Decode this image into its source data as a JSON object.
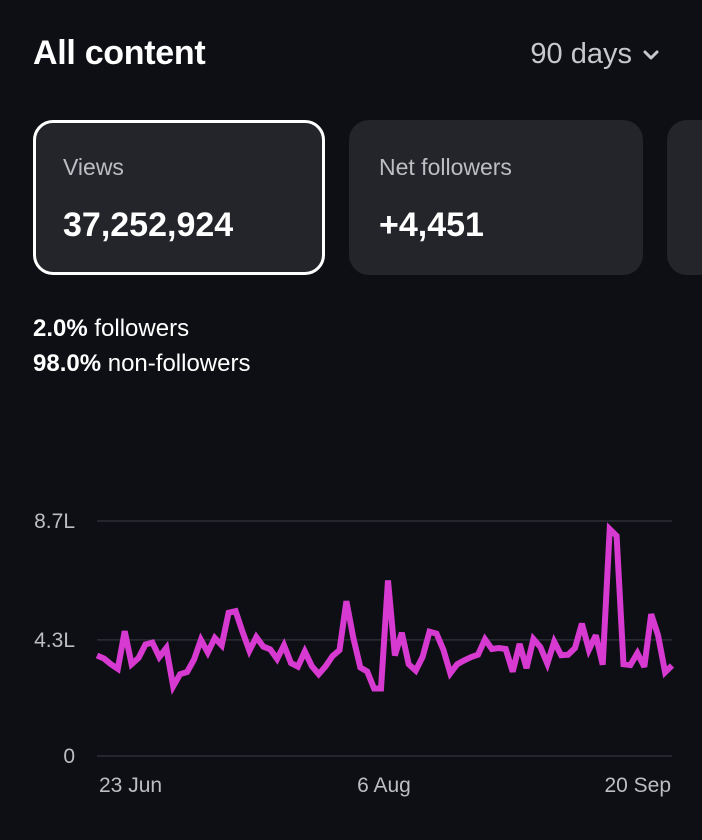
{
  "header": {
    "title": "All content",
    "range_label": "90 days"
  },
  "cards": [
    {
      "label": "Views",
      "value": "37,252,924",
      "selected": true
    },
    {
      "label": "Net followers",
      "value": "+4,451",
      "selected": false
    },
    {
      "label": "",
      "value": "",
      "selected": false
    }
  ],
  "audience": {
    "followers_pct": "2.0%",
    "followers_label": "followers",
    "nonfollowers_pct": "98.0%",
    "nonfollowers_label": "non-followers"
  },
  "colors": {
    "background": "#0d0f14",
    "card": "#23252b",
    "line": "#d63ad0"
  },
  "icons": {
    "range_toggle": "chevron-down-icon"
  },
  "chart_data": {
    "type": "line",
    "y_tick_labels": [
      "0",
      "4.3L",
      "8.7L"
    ],
    "y_ticks": [
      0,
      430000,
      870000
    ],
    "ylim": [
      0,
      870000
    ],
    "x_tick_labels": [
      "23 Jun",
      "6 Aug",
      "20 Sep"
    ],
    "x_tick_days": [
      0,
      44,
      89
    ],
    "x_start_label": "23 Jun",
    "x_end_label": "20 Sep",
    "series": [
      {
        "values": [
          372000,
          361000,
          340000,
          323000,
          462000,
          340000,
          363000,
          413000,
          420000,
          366000,
          400000,
          258000,
          303000,
          311000,
          357000,
          430000,
          383000,
          437000,
          410000,
          530000,
          536000,
          460000,
          390000,
          440000,
          405000,
          395000,
          359000,
          410000,
          344000,
          331000,
          387000,
          333000,
          303000,
          332000,
          370000,
          392000,
          573000,
          438000,
          328000,
          313000,
          250000,
          250000,
          650000,
          372000,
          456000,
          340000,
          316000,
          367000,
          460000,
          453000,
          393000,
          306000,
          340000,
          354000,
          366000,
          375000,
          432000,
          396000,
          400000,
          396000,
          312000,
          415000,
          325000,
          433000,
          403000,
          342000,
          423000,
          373000,
          375000,
          400000,
          490000,
          393000,
          447000,
          338000,
          840000,
          815000,
          340000,
          337000,
          381000,
          330000,
          525000,
          446000,
          310000,
          335000
        ]
      }
    ],
    "legend": "none",
    "grid": true
  }
}
